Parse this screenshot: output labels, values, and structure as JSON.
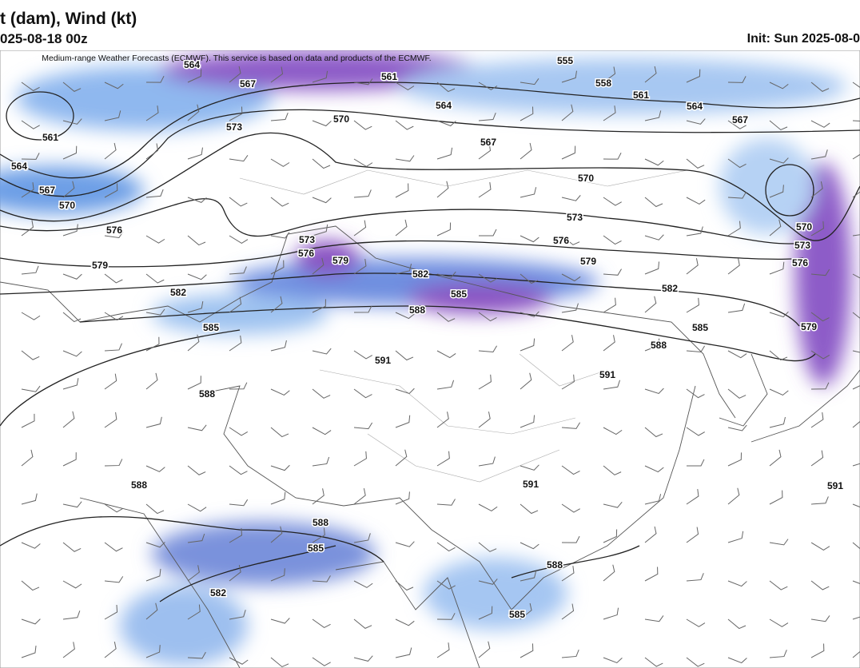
{
  "header": {
    "title": "t (dam), Wind (kt)",
    "valid": "025-08-18 00z",
    "init": "Init: Sun 2025-08-0"
  },
  "map": {
    "credit": "Medium-range Weather Forecasts (ECMWF). This service is based on data and products of the ECMWF.",
    "contour_labels": [
      564,
      567,
      561,
      555,
      558,
      561,
      564,
      564,
      567,
      570,
      573,
      567,
      561,
      564,
      567,
      570,
      570,
      576,
      573,
      573,
      576,
      579,
      576,
      579,
      570,
      573,
      576,
      579,
      582,
      582,
      585,
      582,
      588,
      585,
      585,
      579,
      588,
      591,
      591,
      588,
      591,
      588,
      591,
      588,
      585,
      588,
      582,
      585
    ]
  }
}
